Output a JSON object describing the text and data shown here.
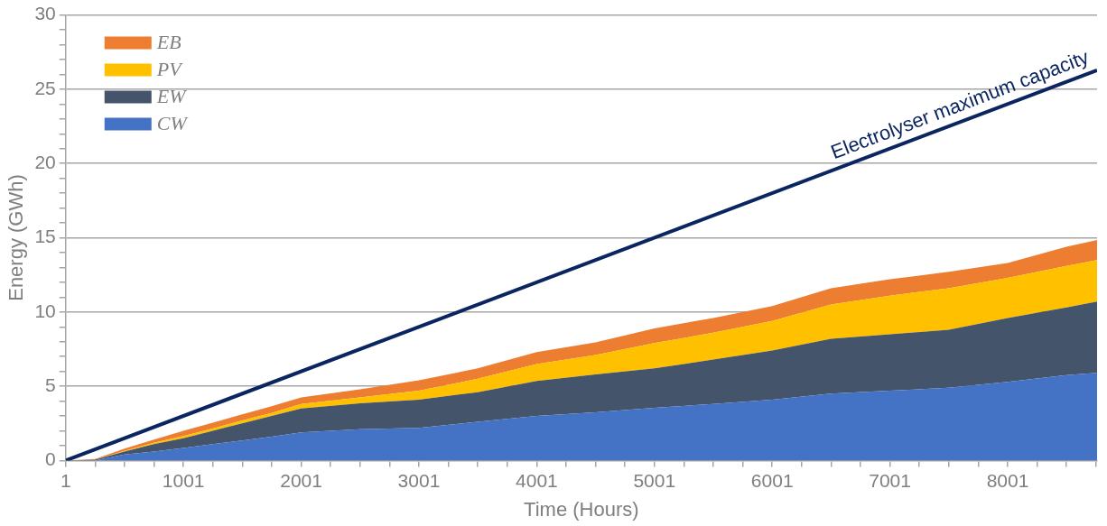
{
  "chart_data": {
    "type": "area",
    "stacked": true,
    "xlabel": "Time (Hours)",
    "ylabel": "Energy (GWh)",
    "x": [
      1,
      250,
      500,
      750,
      1001,
      1250,
      1500,
      1750,
      2001,
      2500,
      3001,
      3500,
      4001,
      4500,
      5001,
      5500,
      6001,
      6500,
      7001,
      7500,
      8001,
      8500,
      8760
    ],
    "xlim": [
      1,
      8760
    ],
    "xticks": [
      1,
      {
        "value": 251,
        "label": null
      },
      {
        "value": 501,
        "label": null
      },
      {
        "value": 751,
        "label": null
      },
      1001,
      {
        "value": 1251,
        "label": null
      },
      {
        "value": 1501,
        "label": null
      },
      {
        "value": 1751,
        "label": null
      },
      2001,
      {
        "value": 2251,
        "label": null
      },
      {
        "value": 2501,
        "label": null
      },
      {
        "value": 2751,
        "label": null
      },
      3001,
      {
        "value": 3251,
        "label": null
      },
      {
        "value": 3501,
        "label": null
      },
      {
        "value": 3751,
        "label": null
      },
      4001,
      {
        "value": 4251,
        "label": null
      },
      {
        "value": 4501,
        "label": null
      },
      {
        "value": 4751,
        "label": null
      },
      5001,
      {
        "value": 5251,
        "label": null
      },
      {
        "value": 5501,
        "label": null
      },
      {
        "value": 5751,
        "label": null
      },
      6001,
      {
        "value": 6251,
        "label": null
      },
      {
        "value": 6501,
        "label": null
      },
      {
        "value": 6751,
        "label": null
      },
      7001,
      {
        "value": 7251,
        "label": null
      },
      {
        "value": 7501,
        "label": null
      },
      {
        "value": 7751,
        "label": null
      },
      8001,
      {
        "value": 8251,
        "label": null
      },
      {
        "value": 8501,
        "label": null
      },
      {
        "value": 8751,
        "label": null
      }
    ],
    "ylim": [
      0,
      30
    ],
    "yticks": [
      0,
      {
        "value": 1,
        "label": null
      },
      {
        "value": 2,
        "label": null
      },
      {
        "value": 3,
        "label": null
      },
      {
        "value": 4,
        "label": null
      },
      5,
      {
        "value": 6,
        "label": null
      },
      {
        "value": 7,
        "label": null
      },
      {
        "value": 8,
        "label": null
      },
      {
        "value": 9,
        "label": null
      },
      10,
      {
        "value": 11,
        "label": null
      },
      {
        "value": 12,
        "label": null
      },
      {
        "value": 13,
        "label": null
      },
      {
        "value": 14,
        "label": null
      },
      15,
      {
        "value": 16,
        "label": null
      },
      {
        "value": 17,
        "label": null
      },
      {
        "value": 18,
        "label": null
      },
      {
        "value": 19,
        "label": null
      },
      20,
      {
        "value": 21,
        "label": null
      },
      {
        "value": 22,
        "label": null
      },
      {
        "value": 23,
        "label": null
      },
      {
        "value": 24,
        "label": null
      },
      25,
      {
        "value": 26,
        "label": null
      },
      {
        "value": 27,
        "label": null
      },
      {
        "value": 28,
        "label": null
      },
      {
        "value": 29,
        "label": null
      },
      30
    ],
    "grid": "y",
    "legend": "top left",
    "series": [
      {
        "name": "CW",
        "color": "#4472c4",
        "values": [
          0,
          0,
          0.4,
          0.6,
          0.85,
          1.1,
          1.35,
          1.6,
          1.9,
          2.1,
          2.2,
          2.6,
          3.0,
          3.25,
          3.55,
          3.8,
          4.1,
          4.5,
          4.7,
          4.9,
          5.3,
          5.75,
          5.9
        ]
      },
      {
        "name": "EW",
        "color": "#44546a",
        "values": [
          0,
          0.05,
          0.2,
          0.5,
          0.65,
          0.9,
          1.15,
          1.4,
          1.6,
          1.75,
          1.9,
          2.0,
          2.35,
          2.55,
          2.65,
          3.0,
          3.3,
          3.7,
          3.8,
          3.9,
          4.3,
          4.55,
          4.8
        ]
      },
      {
        "name": "PV",
        "color": "#ffc000",
        "values": [
          0,
          0,
          0.05,
          0.1,
          0.15,
          0.15,
          0.2,
          0.2,
          0.3,
          0.4,
          0.6,
          0.9,
          1.15,
          1.3,
          1.7,
          1.8,
          2.0,
          2.3,
          2.6,
          2.8,
          2.7,
          2.8,
          2.8
        ]
      },
      {
        "name": "EB",
        "color": "#ed7d31",
        "values": [
          0,
          0.05,
          0.15,
          0.2,
          0.35,
          0.4,
          0.4,
          0.45,
          0.45,
          0.55,
          0.7,
          0.7,
          0.8,
          0.85,
          1.0,
          1.0,
          1.0,
          1.1,
          1.1,
          1.1,
          1.0,
          1.3,
          1.35
        ]
      },
      {
        "name": "Electrolyser maximum capacity",
        "type": "line",
        "color": "#0b2560",
        "x": [
          1,
          8760
        ],
        "values": [
          0,
          26.28
        ]
      }
    ]
  }
}
